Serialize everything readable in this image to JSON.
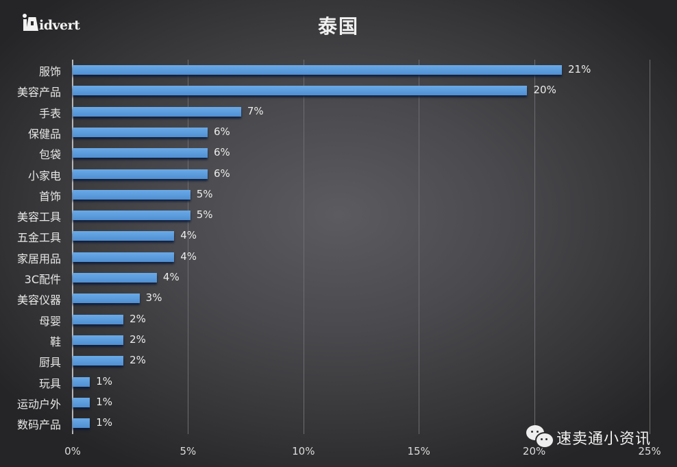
{
  "header": {
    "logo_text": "idvert",
    "title": "泰国"
  },
  "watermark": {
    "icon": "wechat-icon",
    "text": "速卖通小资讯"
  },
  "style": {
    "bar_color": "#5b9ad8",
    "background_center": "#5c5c60",
    "background_edge": "#252527"
  },
  "chart_data": {
    "type": "bar",
    "orientation": "horizontal",
    "title": "泰国",
    "xlabel": "",
    "ylabel": "",
    "xlim": [
      0,
      25
    ],
    "x_ticks": [
      "0%",
      "5%",
      "10%",
      "15%",
      "20%",
      "25%"
    ],
    "grid": true,
    "legend": null,
    "categories": [
      "服饰",
      "美容产品",
      "手表",
      "保健品",
      "包袋",
      "小家电",
      "首饰",
      "美容工具",
      "五金工具",
      "家居用品",
      "3C配件",
      "美容仪器",
      "母婴",
      "鞋",
      "厨具",
      "玩具",
      "运动户外",
      "数码产品"
    ],
    "values": [
      21.2,
      19.7,
      7.3,
      5.85,
      5.85,
      5.85,
      5.1,
      5.1,
      4.4,
      4.4,
      3.65,
      2.9,
      2.2,
      2.2,
      2.2,
      0.75,
      0.75,
      0.75
    ],
    "labels": [
      "21%",
      "20%",
      "7%",
      "6%",
      "6%",
      "6%",
      "5%",
      "5%",
      "4%",
      "4%",
      "4%",
      "3%",
      "2%",
      "2%",
      "2%",
      "1%",
      "1%",
      "1%"
    ]
  }
}
